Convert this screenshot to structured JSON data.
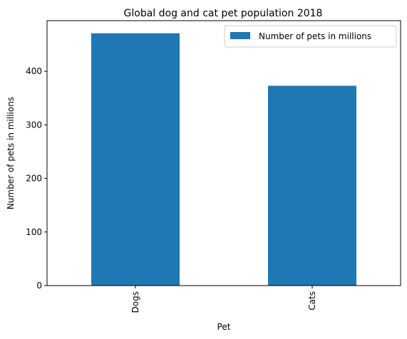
{
  "chart_data": {
    "type": "bar",
    "title": "Global dog and cat pet population 2018",
    "xlabel": "Pet",
    "ylabel": "Number of pets in millions",
    "categories": [
      "Dogs",
      "Cats"
    ],
    "series": [
      {
        "name": "Number of pets in millions",
        "values": [
          471,
          373
        ]
      }
    ],
    "ylim": [
      0,
      494.55
    ],
    "yticks": [
      0,
      100,
      200,
      300,
      400
    ],
    "grid": false,
    "legend_position": "top-right",
    "bar_color": "#1f77b4",
    "x_tick_rotation": "vertical"
  }
}
